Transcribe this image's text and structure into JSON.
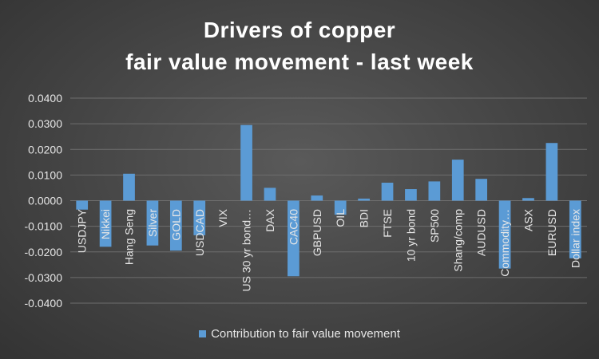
{
  "chart_data": {
    "type": "bar",
    "title_line1": "Drivers of copper",
    "title_line2": "fair value movement - last week",
    "categories": [
      "USDJPY",
      "Nikkei",
      "Hang Seng",
      "Silver",
      "GOLD",
      "USDCAD",
      "VIX",
      "US 30 yr bond…",
      "DAX",
      "CAC40",
      "GBPUSD",
      "OIL",
      "BDI",
      "FTSE",
      "10 yr bond",
      "SP500",
      "Shang/comp",
      "AUDUSD",
      "Commodity…",
      "ASX",
      "EURUSD",
      "Dollar index"
    ],
    "series": [
      {
        "name": "Contribution to fair value movement",
        "values": [
          -0.0035,
          -0.018,
          0.0105,
          -0.0175,
          -0.0195,
          -0.0135,
          0.0,
          0.0295,
          0.005,
          -0.0295,
          0.002,
          -0.0055,
          0.0008,
          0.007,
          0.0045,
          0.0075,
          0.016,
          0.0085,
          -0.0265,
          0.001,
          0.0225,
          -0.0225
        ]
      }
    ],
    "ylim": [
      -0.04,
      0.04
    ],
    "ytick_step": 0.01,
    "yticks": [
      "0.0400",
      "0.0300",
      "0.0200",
      "0.0100",
      "0.0000",
      "-0.0100",
      "-0.0200",
      "-0.0300",
      "-0.0400"
    ],
    "grid": true,
    "legend_position": "bottom",
    "colors": {
      "bar": "#5b9bd5",
      "grid": "#6e6e6e",
      "text": "#e6e6e6"
    }
  }
}
